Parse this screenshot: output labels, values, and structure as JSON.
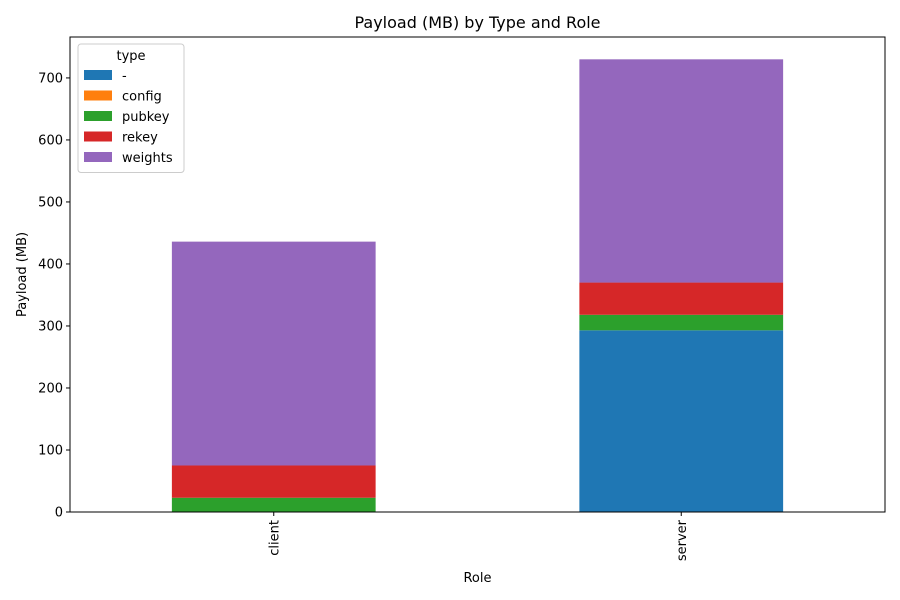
{
  "chart_data": {
    "type": "bar",
    "stacked": true,
    "title": "Payload (MB) by Type and Role",
    "xlabel": "Role",
    "ylabel": "Payload (MB)",
    "categories": [
      "client",
      "server"
    ],
    "ylim": [
      0,
      766
    ],
    "yticks": [
      0,
      100,
      200,
      300,
      400,
      500,
      600,
      700
    ],
    "grid": false,
    "legend": {
      "title": "type",
      "placement": "top-left"
    },
    "series": [
      {
        "name": "-",
        "color": "#1f77b4",
        "values": [
          0,
          293
        ]
      },
      {
        "name": "config",
        "color": "#ff7f0e",
        "values": [
          0,
          0
        ]
      },
      {
        "name": "pubkey",
        "color": "#2ca02c",
        "values": [
          23,
          25
        ]
      },
      {
        "name": "rekey",
        "color": "#d62728",
        "values": [
          52,
          52
        ]
      },
      {
        "name": "weights",
        "color": "#9467bd",
        "values": [
          361,
          360
        ]
      }
    ]
  }
}
